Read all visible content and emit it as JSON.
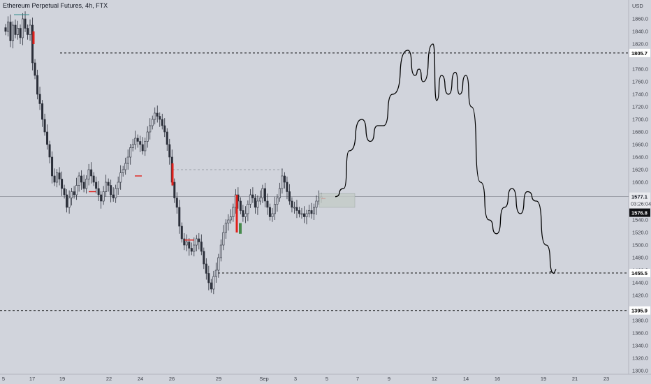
{
  "header": {
    "symbol_title": "Ethereum Perpetual Futures, 4h, FTX"
  },
  "colors": {
    "background": "#d1d4dc",
    "candle": "#2a2e39",
    "bear_highlight": "#e0201b",
    "bull_box": "#2e7d32",
    "drawing_line": "#000000",
    "last_price_label": "#0f1013",
    "level_label": "#000000"
  },
  "chart_data": {
    "type": "candlestick",
    "symbol": "Ethereum Perpetual Futures",
    "interval": "4h",
    "exchange": "FTX",
    "currency": "USD",
    "ylim": [
      1300,
      1880
    ],
    "y_ticks": [
      1300,
      1320,
      1340,
      1360,
      1380,
      1420,
      1440,
      1460,
      1480,
      1500,
      1520,
      1540,
      1600,
      1620,
      1640,
      1660,
      1680,
      1700,
      1720,
      1740,
      1760,
      1780,
      1820,
      1840,
      1860
    ],
    "x_ticks": [
      "5",
      "17",
      "19",
      "22",
      "24",
      "26",
      "29",
      "Sep",
      "3",
      "5",
      "7",
      "9",
      "12",
      "14",
      "16",
      "19",
      "21",
      "23"
    ],
    "horizontal_levels": [
      1805.7,
      1455.5,
      1395.9,
      1577.1
    ],
    "price_labels": {
      "level_high": "1805.7",
      "last_price": "1577.1",
      "countdown": "03:26:04",
      "current": "1576.8",
      "level_low": "1455.5",
      "level_lowest": "1395.9"
    },
    "projection_path_prices": [
      1577,
      1590,
      1650,
      1700,
      1665,
      1690,
      1690,
      1740,
      1810,
      1770,
      1780,
      1760,
      1820,
      1730,
      1770,
      1740,
      1775,
      1740,
      1770,
      1720,
      1600,
      1540,
      1518,
      1560,
      1590,
      1550,
      1585,
      1570,
      1500,
      1455
    ],
    "projection_path_x": [
      "Sep 5",
      "Sep 6",
      "Sep 6",
      "Sep 7",
      "Sep 8",
      "Sep 8",
      "Sep 8",
      "Sep 9",
      "Sep 10",
      "Sep 10",
      "Sep 10",
      "Sep 11",
      "Sep 11",
      "Sep 12",
      "Sep 12",
      "Sep 12",
      "Sep 13",
      "Sep 13",
      "Sep 13",
      "Sep 14",
      "Sep 14",
      "Sep 15",
      "Sep 16",
      "Sep 16",
      "Sep 17",
      "Sep 17",
      "Sep 18",
      "Sep 18",
      "Sep 19",
      "Sep 19"
    ],
    "candles_close": [
      1840,
      1855,
      1825,
      1850,
      1835,
      1845,
      1830,
      1860,
      1845,
      1835,
      1850,
      1790,
      1770,
      1740,
      1725,
      1700,
      1680,
      1660,
      1640,
      1610,
      1600,
      1615,
      1605,
      1590,
      1580,
      1560,
      1575,
      1585,
      1580,
      1595,
      1610,
      1600,
      1590,
      1605,
      1620,
      1610,
      1600,
      1590,
      1580,
      1570,
      1585,
      1600,
      1595,
      1580,
      1575,
      1590,
      1600,
      1615,
      1620,
      1630,
      1640,
      1655,
      1660,
      1670,
      1665,
      1660,
      1650,
      1665,
      1680,
      1690,
      1700,
      1710,
      1705,
      1700,
      1690,
      1680,
      1660,
      1640,
      1600,
      1575,
      1560,
      1530,
      1510,
      1500,
      1505,
      1495,
      1490,
      1500,
      1510,
      1505,
      1490,
      1470,
      1455,
      1440,
      1430,
      1450,
      1460,
      1480,
      1500,
      1520,
      1535,
      1540,
      1545,
      1560,
      1580,
      1570,
      1555,
      1545,
      1550,
      1565,
      1580,
      1575,
      1560,
      1570,
      1575,
      1590,
      1570,
      1560,
      1545,
      1550,
      1565,
      1575,
      1590,
      1610,
      1600,
      1585,
      1570,
      1560,
      1560,
      1555,
      1550,
      1550,
      1545,
      1550,
      1555,
      1550,
      1560,
      1570,
      1575,
      1577
    ]
  }
}
